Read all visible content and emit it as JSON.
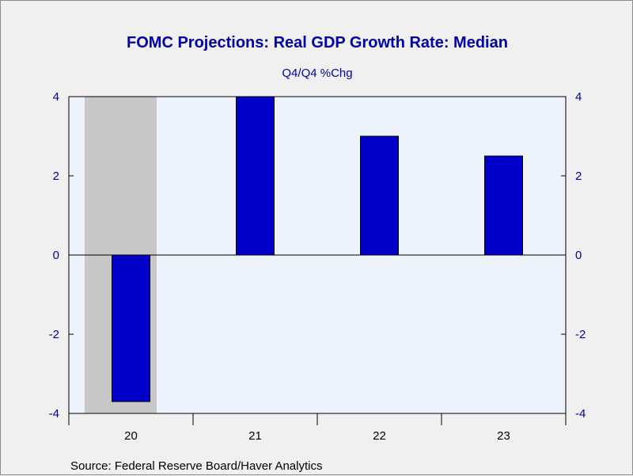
{
  "chart_data": {
    "type": "bar",
    "title": "FOMC Projections: Real GDP Growth Rate: Median",
    "subtitle": "Q4/Q4 %Chg",
    "categories": [
      "20",
      "21",
      "22",
      "23"
    ],
    "values": [
      -3.7,
      4.0,
      3.0,
      2.5
    ],
    "ylim": [
      -4,
      4
    ],
    "yticks": [
      -4,
      -2,
      0,
      2,
      4
    ],
    "left_axis_tick_labels": [
      "-4",
      "-2",
      "0",
      "2",
      "4"
    ],
    "right_axis_tick_labels": [
      "-4",
      "-2",
      "0",
      "2",
      "4"
    ],
    "recession_shading_category": "20",
    "source": "Source:  Federal Reserve Board/Haver Analytics",
    "colors": {
      "bar_fill": "#0000c8",
      "plot_background": "#eef4fb",
      "recession_shade": "#c8c8c8",
      "text_blue": "#0000a8"
    }
  }
}
